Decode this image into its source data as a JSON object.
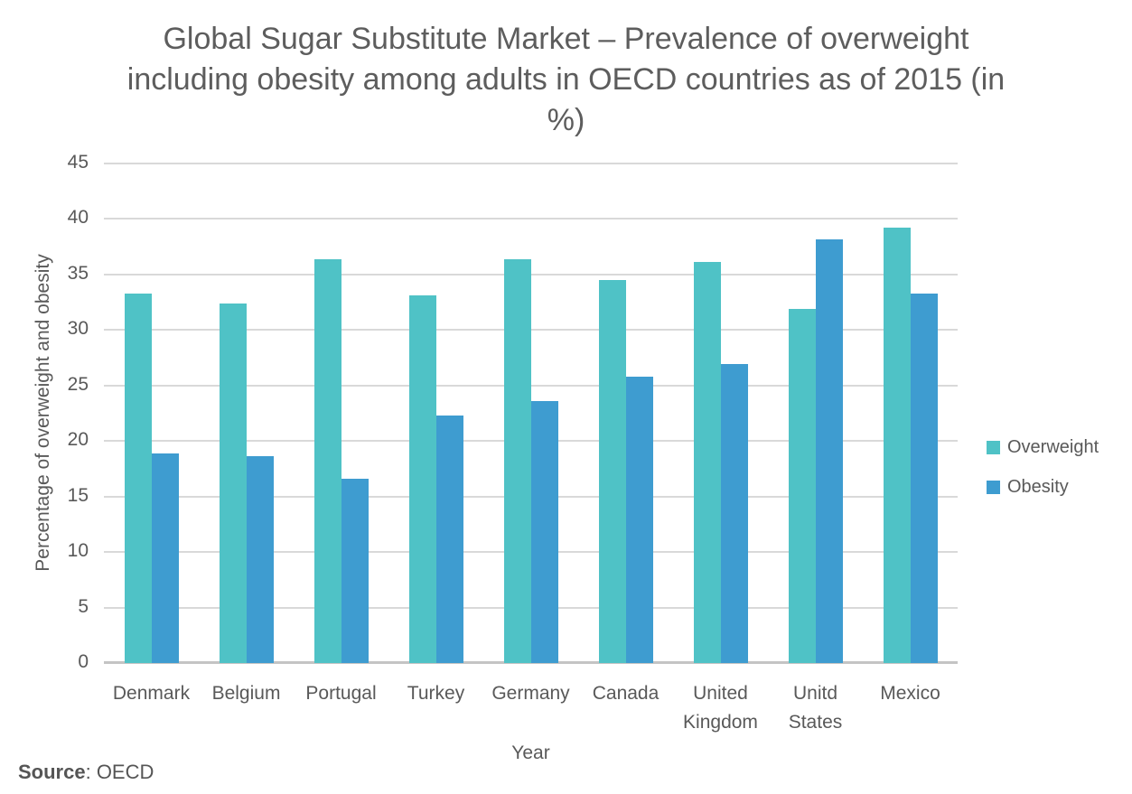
{
  "title": {
    "lines": [
      "Global Sugar Substitute Market – Prevalence of overweight",
      "including obesity among adults in OECD countries as of 2015 (in",
      "%)"
    ]
  },
  "source": {
    "label": "Source",
    "rest": ": OECD"
  },
  "chart_data": {
    "type": "bar",
    "title": "Global Sugar Substitute Market – Prevalence of overweight including obesity among adults in OECD countries as of 2015 (in %)",
    "categories": [
      "Denmark",
      "Belgium",
      "Portugal",
      "Turkey",
      "Germany",
      "Canada",
      "United Kingdom",
      "Unitd States",
      "Mexico"
    ],
    "series": [
      {
        "name": "Overweight",
        "color": "#4FC2C6",
        "values": [
          33.3,
          32.4,
          36.4,
          33.1,
          36.4,
          34.5,
          36.1,
          31.9,
          39.2
        ]
      },
      {
        "name": "Obesity",
        "color": "#3E9CD0",
        "values": [
          18.9,
          18.6,
          16.6,
          22.3,
          23.6,
          25.8,
          26.9,
          38.2,
          33.3
        ]
      }
    ],
    "xlabel": "Year",
    "ylabel": "Percentage of overweight and obesity",
    "ylim": [
      0,
      45
    ],
    "ytick_step": 5,
    "yticks": [
      0,
      5,
      10,
      15,
      20,
      25,
      30,
      35,
      40,
      45
    ],
    "grid": true,
    "legend_position": "right",
    "gridline_color": "#D9D9D9",
    "axis_line_color": "#C4C4C4",
    "text_color": "#595959"
  }
}
